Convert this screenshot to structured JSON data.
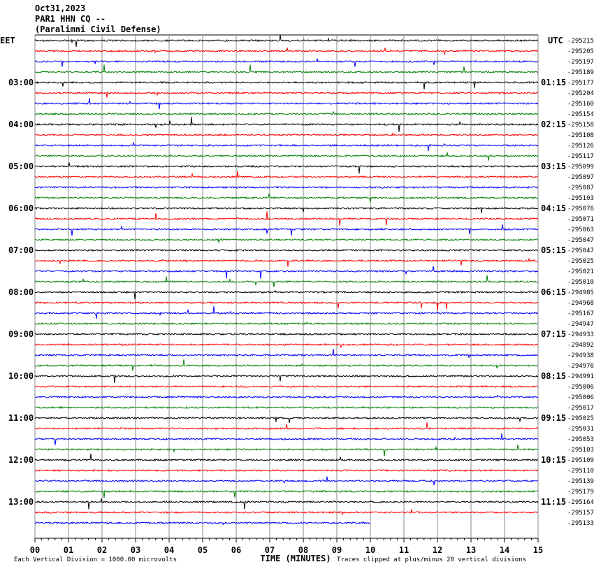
{
  "chart_data": {
    "type": "helicorder",
    "title": "Oct31,2023",
    "subtitle": "PAR1 HHN CQ --",
    "station": "(Paralimni Civil Defense)",
    "left_zone": "EET",
    "right_zone": "UTC",
    "left_times": [
      "03:00",
      "04:00",
      "05:00",
      "06:00",
      "07:00",
      "08:00",
      "09:00",
      "10:00",
      "11:00",
      "12:00",
      "13:00"
    ],
    "right_times": [
      "01:15",
      "02:15",
      "03:15",
      "04:15",
      "05:15",
      "06:15",
      "07:15",
      "08:15",
      "09:15",
      "10:15",
      "11:15"
    ],
    "offsets": [
      -295215,
      -295205,
      -295197,
      -295189,
      -295177,
      -295204,
      -295160,
      -295154,
      -295158,
      -295108,
      -295126,
      -295117,
      -295099,
      -295097,
      -295087,
      -295103,
      -295076,
      -295071,
      -295063,
      -295047,
      -295047,
      -295025,
      -295021,
      -295010,
      -294985,
      -294968,
      -295167,
      -294947,
      -294933,
      -294892,
      -294938,
      -294976,
      -294991,
      -295006,
      -295006,
      -295017,
      -295025,
      -295031,
      -295053,
      -295103,
      -295109,
      -295110,
      -295139,
      -295179,
      -295164,
      -295157,
      -295133
    ],
    "colors": [
      "#000000",
      "#ff0000",
      "#0000ff",
      "#008000"
    ],
    "end_minute": 10,
    "xlabel": "TIME (MINUTES)",
    "xlim": [
      0,
      15
    ],
    "xticks": [
      {
        "value": 0,
        "label": "00"
      },
      {
        "value": 1,
        "label": "01"
      },
      {
        "value": 2,
        "label": "02"
      },
      {
        "value": 3,
        "label": "03"
      },
      {
        "value": 4,
        "label": "04"
      },
      {
        "value": 5,
        "label": "05"
      },
      {
        "value": 6,
        "label": "06"
      },
      {
        "value": 7,
        "label": "07"
      },
      {
        "value": 8,
        "label": "08"
      },
      {
        "value": 9,
        "label": "09"
      },
      {
        "value": 10,
        "label": "10"
      },
      {
        "value": 11,
        "label": "11"
      },
      {
        "value": 12,
        "label": "12"
      },
      {
        "value": 13,
        "label": "13"
      },
      {
        "value": 14,
        "label": "14"
      },
      {
        "value": 15,
        "label": "15"
      }
    ],
    "scale_note": "Each Vertical Division = 1000.00 microvolts",
    "clip_note": "Traces clipped at plus/minus 20 vertical divisions"
  }
}
